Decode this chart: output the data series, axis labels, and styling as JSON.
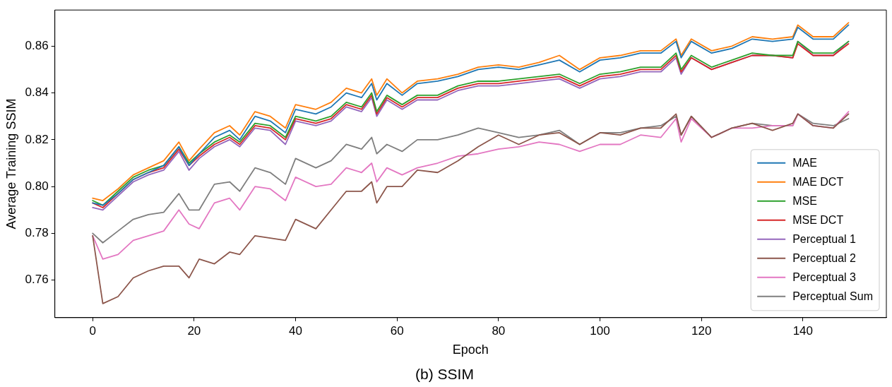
{
  "chart_data": {
    "type": "line",
    "title": "(b) SSIM",
    "xlabel": "Epoch",
    "ylabel": "Average Training SSIM",
    "x": [
      0,
      2,
      5,
      8,
      11,
      14,
      17,
      19,
      21,
      24,
      27,
      29,
      32,
      35,
      38,
      40,
      44,
      47,
      50,
      53,
      55,
      56,
      58,
      61,
      64,
      68,
      72,
      76,
      80,
      84,
      88,
      92,
      96,
      100,
      104,
      108,
      112,
      115,
      116,
      118,
      122,
      126,
      130,
      134,
      138,
      139,
      142,
      146,
      149
    ],
    "xlim": [
      -7.45,
      156.45
    ],
    "xticks": [
      0,
      20,
      40,
      60,
      80,
      100,
      120,
      140
    ],
    "ylim": [
      0.744,
      0.8754
    ],
    "yticks": [
      {
        "value": 0.76,
        "label": "0.76"
      },
      {
        "value": 0.78,
        "label": "0.78"
      },
      {
        "value": 0.8,
        "label": "0.80"
      },
      {
        "value": 0.82,
        "label": "0.82"
      },
      {
        "value": 0.84,
        "label": "0.84"
      },
      {
        "value": 0.86,
        "label": "0.86"
      }
    ],
    "grid": false,
    "legend": "bottom right",
    "marker": "none",
    "line_style": "solid",
    "series": [
      {
        "name": "MAE",
        "color": "#1f77b4",
        "values": [
          0.793,
          0.792,
          0.797,
          0.803,
          0.806,
          0.809,
          0.817,
          0.809,
          0.814,
          0.821,
          0.824,
          0.82,
          0.83,
          0.828,
          0.823,
          0.833,
          0.831,
          0.834,
          0.84,
          0.838,
          0.844,
          0.837,
          0.844,
          0.839,
          0.844,
          0.845,
          0.847,
          0.85,
          0.851,
          0.85,
          0.852,
          0.854,
          0.849,
          0.854,
          0.855,
          0.857,
          0.857,
          0.862,
          0.855,
          0.862,
          0.857,
          0.859,
          0.863,
          0.862,
          0.863,
          0.868,
          0.863,
          0.863,
          0.869
        ]
      },
      {
        "name": "MAE DCT",
        "color": "#ff7f0e",
        "values": [
          0.795,
          0.794,
          0.799,
          0.805,
          0.808,
          0.811,
          0.819,
          0.811,
          0.816,
          0.823,
          0.826,
          0.822,
          0.832,
          0.83,
          0.825,
          0.835,
          0.833,
          0.836,
          0.842,
          0.84,
          0.846,
          0.839,
          0.846,
          0.84,
          0.845,
          0.846,
          0.848,
          0.851,
          0.852,
          0.851,
          0.853,
          0.856,
          0.85,
          0.855,
          0.856,
          0.858,
          0.858,
          0.863,
          0.856,
          0.863,
          0.858,
          0.86,
          0.864,
          0.863,
          0.864,
          0.869,
          0.864,
          0.864,
          0.87
        ]
      },
      {
        "name": "MSE",
        "color": "#2ca02c",
        "values": [
          0.794,
          0.792,
          0.798,
          0.804,
          0.807,
          0.809,
          0.817,
          0.81,
          0.814,
          0.819,
          0.822,
          0.819,
          0.827,
          0.826,
          0.821,
          0.83,
          0.828,
          0.83,
          0.836,
          0.834,
          0.84,
          0.832,
          0.839,
          0.835,
          0.839,
          0.839,
          0.843,
          0.845,
          0.845,
          0.846,
          0.847,
          0.848,
          0.844,
          0.848,
          0.849,
          0.851,
          0.851,
          0.857,
          0.85,
          0.856,
          0.851,
          0.854,
          0.857,
          0.856,
          0.856,
          0.862,
          0.857,
          0.857,
          0.862
        ]
      },
      {
        "name": "MSE DCT",
        "color": "#d62728",
        "values": [
          0.793,
          0.791,
          0.797,
          0.803,
          0.806,
          0.808,
          0.816,
          0.809,
          0.813,
          0.818,
          0.821,
          0.818,
          0.826,
          0.825,
          0.82,
          0.829,
          0.827,
          0.829,
          0.835,
          0.833,
          0.839,
          0.831,
          0.838,
          0.834,
          0.838,
          0.838,
          0.842,
          0.844,
          0.844,
          0.845,
          0.846,
          0.847,
          0.843,
          0.847,
          0.848,
          0.85,
          0.85,
          0.856,
          0.849,
          0.855,
          0.85,
          0.853,
          0.856,
          0.856,
          0.855,
          0.861,
          0.856,
          0.856,
          0.861
        ]
      },
      {
        "name": "Perceptual 1",
        "color": "#9467bd",
        "values": [
          0.791,
          0.79,
          0.796,
          0.802,
          0.805,
          0.807,
          0.815,
          0.807,
          0.812,
          0.817,
          0.82,
          0.817,
          0.825,
          0.824,
          0.818,
          0.828,
          0.826,
          0.828,
          0.834,
          0.832,
          0.838,
          0.83,
          0.837,
          0.833,
          0.837,
          0.837,
          0.841,
          0.843,
          0.843,
          0.844,
          0.845,
          0.846,
          0.842,
          0.846,
          0.847,
          0.849,
          0.849,
          0.855,
          0.848,
          0.855,
          0.85,
          0.853,
          0.856,
          0.856,
          0.855,
          0.862,
          0.856,
          0.856,
          0.862
        ]
      },
      {
        "name": "Perceptual 2",
        "color": "#8c564b",
        "values": [
          0.779,
          0.75,
          0.753,
          0.761,
          0.764,
          0.766,
          0.766,
          0.761,
          0.769,
          0.767,
          0.772,
          0.771,
          0.779,
          0.778,
          0.777,
          0.786,
          0.782,
          0.79,
          0.798,
          0.798,
          0.802,
          0.793,
          0.8,
          0.8,
          0.807,
          0.806,
          0.811,
          0.817,
          0.822,
          0.818,
          0.822,
          0.823,
          0.818,
          0.823,
          0.822,
          0.825,
          0.825,
          0.831,
          0.822,
          0.83,
          0.821,
          0.825,
          0.827,
          0.824,
          0.827,
          0.831,
          0.826,
          0.825,
          0.831
        ]
      },
      {
        "name": "Perceptual 3",
        "color": "#e377c2",
        "values": [
          0.779,
          0.769,
          0.771,
          0.777,
          0.779,
          0.781,
          0.79,
          0.784,
          0.782,
          0.793,
          0.795,
          0.79,
          0.8,
          0.799,
          0.794,
          0.804,
          0.8,
          0.801,
          0.808,
          0.806,
          0.81,
          0.802,
          0.808,
          0.805,
          0.808,
          0.81,
          0.813,
          0.814,
          0.816,
          0.817,
          0.819,
          0.818,
          0.815,
          0.818,
          0.818,
          0.822,
          0.821,
          0.829,
          0.819,
          0.829,
          0.821,
          0.825,
          0.825,
          0.826,
          0.826,
          0.831,
          0.826,
          0.825,
          0.832
        ]
      },
      {
        "name": "Perceptual Sum",
        "color": "#7f7f7f",
        "values": [
          0.78,
          0.776,
          0.781,
          0.786,
          0.788,
          0.789,
          0.797,
          0.79,
          0.79,
          0.801,
          0.802,
          0.798,
          0.808,
          0.806,
          0.801,
          0.812,
          0.808,
          0.811,
          0.818,
          0.816,
          0.821,
          0.814,
          0.818,
          0.815,
          0.82,
          0.82,
          0.822,
          0.825,
          0.823,
          0.821,
          0.822,
          0.824,
          0.818,
          0.823,
          0.823,
          0.825,
          0.826,
          0.83,
          0.822,
          0.83,
          0.821,
          0.825,
          0.827,
          0.826,
          0.826,
          0.831,
          0.827,
          0.826,
          0.829
        ]
      }
    ]
  }
}
